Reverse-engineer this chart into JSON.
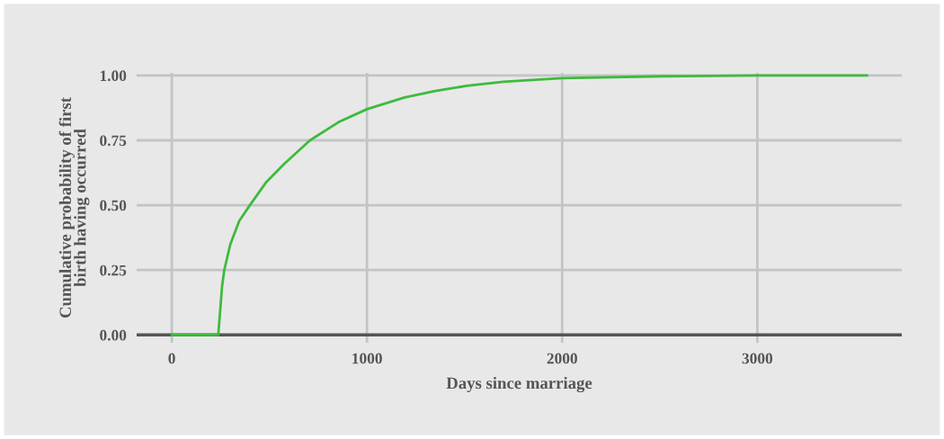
{
  "chart_data": {
    "type": "line",
    "xlabel": "Days since marriage",
    "ylabel": "Cumulative probability of first\nbirth having occurred",
    "x": [
      0,
      238,
      258,
      269,
      300,
      346,
      400,
      485,
      577,
      708,
      854,
      1000,
      1192,
      1350,
      1511,
      1700,
      2000,
      2515,
      3000,
      3562
    ],
    "series": [
      {
        "color": "#3dbb3d",
        "values": [
          0,
          0,
          0.19,
          0.25,
          0.35,
          0.44,
          0.5,
          0.59,
          0.66,
          0.75,
          0.82,
          0.87,
          0.915,
          0.94,
          0.96,
          0.976,
          0.99,
          0.997,
          1.0,
          1.0
        ]
      }
    ],
    "xlim": [
      -180,
      3740
    ],
    "ylim": [
      -0.03,
      1.01
    ],
    "xticks": [
      0,
      1000,
      2000,
      3000
    ],
    "yticks": [
      {
        "value": 0,
        "label": "0.00"
      },
      {
        "value": 0.25,
        "label": "0.25"
      },
      {
        "value": 0.5,
        "label": "0.50"
      },
      {
        "value": 0.75,
        "label": "0.75"
      },
      {
        "value": 1,
        "label": "1.00"
      }
    ],
    "grid": true
  }
}
